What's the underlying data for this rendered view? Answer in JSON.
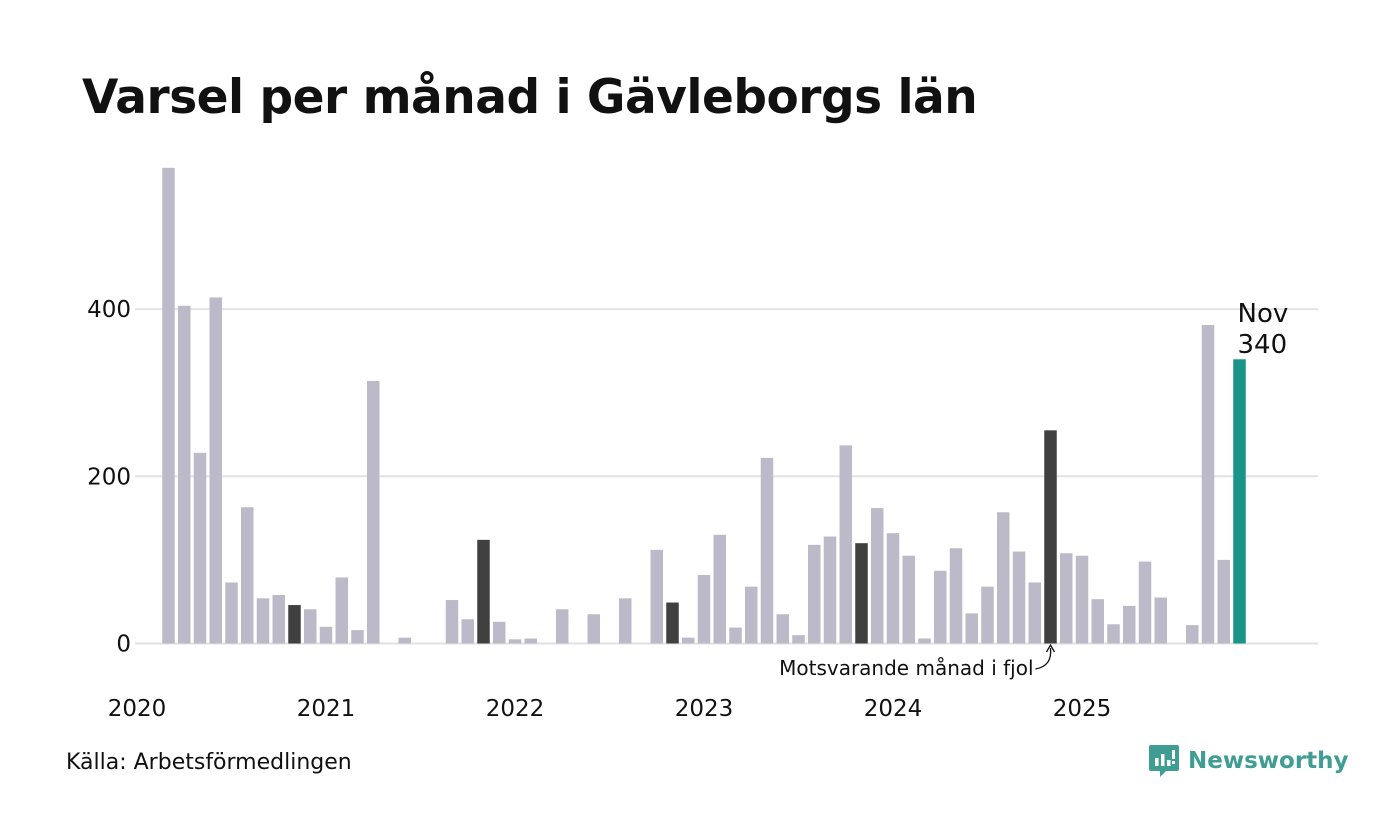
{
  "title": "Varsel per månad i Gävleborgs län",
  "source": "Källa: Arbetsförmedlingen",
  "brand": "Newsworthy",
  "colors": {
    "bar": "#bcbac8",
    "previous_year": "#404040",
    "current": "#1a9488",
    "grid": "#e2e2e2",
    "brand": "#3f9d94"
  },
  "chart_data": {
    "type": "bar",
    "title": "Varsel per månad i Gävleborgs län",
    "xlabel": "",
    "ylabel": "",
    "ylim": [
      0,
      570
    ],
    "yticks": [
      0,
      200,
      400
    ],
    "grid": true,
    "year_labels": [
      "2020",
      "2021",
      "2022",
      "2023",
      "2024",
      "2025"
    ],
    "start": "2020-03",
    "categories": [
      "2020-03",
      "2020-04",
      "2020-05",
      "2020-06",
      "2020-07",
      "2020-08",
      "2020-09",
      "2020-10",
      "2020-11",
      "2020-12",
      "2021-01",
      "2021-02",
      "2021-03",
      "2021-04",
      "2021-05",
      "2021-06",
      "2021-07",
      "2021-08",
      "2021-09",
      "2021-10",
      "2021-11",
      "2021-12",
      "2022-01",
      "2022-02",
      "2022-03",
      "2022-04",
      "2022-05",
      "2022-06",
      "2022-07",
      "2022-08",
      "2022-09",
      "2022-10",
      "2022-11",
      "2022-12",
      "2023-01",
      "2023-02",
      "2023-03",
      "2023-04",
      "2023-05",
      "2023-06",
      "2023-07",
      "2023-08",
      "2023-09",
      "2023-10",
      "2023-11",
      "2023-12",
      "2024-01",
      "2024-02",
      "2024-03",
      "2024-04",
      "2024-05",
      "2024-06",
      "2024-07",
      "2024-08",
      "2024-09",
      "2024-10",
      "2024-11",
      "2024-12",
      "2025-01",
      "2025-02",
      "2025-03",
      "2025-04",
      "2025-05",
      "2025-06",
      "2025-07",
      "2025-08",
      "2025-09",
      "2025-10",
      "2025-11"
    ],
    "values": [
      569,
      404,
      228,
      414,
      73,
      163,
      54,
      58,
      46,
      41,
      20,
      79,
      16,
      314,
      0,
      7,
      0,
      0,
      52,
      29,
      124,
      26,
      5,
      6,
      0,
      41,
      0,
      35,
      0,
      54,
      0,
      112,
      49,
      7,
      82,
      130,
      19,
      68,
      222,
      35,
      10,
      118,
      128,
      237,
      120,
      162,
      132,
      105,
      6,
      87,
      114,
      36,
      68,
      157,
      110,
      73,
      255,
      108,
      105,
      53,
      23,
      45,
      98,
      55,
      0,
      22,
      381,
      100,
      340
    ],
    "highlight_previous_year": [
      "2020-11",
      "2021-11",
      "2022-11",
      "2023-11",
      "2024-11"
    ],
    "highlight_current": "2025-11",
    "annotations": [
      {
        "text": "Motsvarande månad i fjol",
        "target": "2024-11"
      },
      {
        "text_line1": "Nov",
        "text_line2": "340",
        "target": "2025-11"
      }
    ]
  }
}
